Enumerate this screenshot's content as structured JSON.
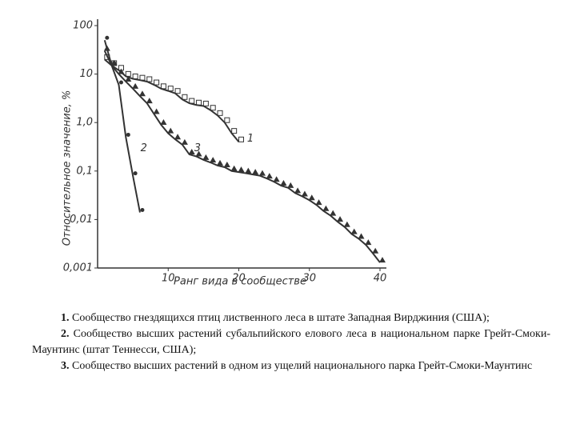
{
  "chart_data": {
    "type": "line",
    "log_y": true,
    "xlabel": "Ранг вида в сообществе",
    "ylabel": "Относительное значение, %",
    "xlim": [
      0,
      40
    ],
    "xticks": [
      10,
      20,
      30,
      40
    ],
    "ylim": [
      0.001,
      100
    ],
    "yticks": [
      100,
      10,
      {
        "value": 1,
        "label": "1,0"
      },
      {
        "value": 0.1,
        "label": "0,1"
      },
      {
        "value": 0.01,
        "label": "0,01"
      },
      {
        "value": 0.001,
        "label": "0,001"
      }
    ],
    "series": [
      {
        "name": "1",
        "color": "#333333",
        "marker": "square",
        "x": [
          1,
          2,
          3,
          4,
          5,
          6,
          7,
          8,
          9,
          10,
          11,
          12,
          13,
          14,
          15,
          16,
          17,
          18,
          19,
          20
        ],
        "values": [
          20,
          15,
          12,
          9,
          8,
          7.5,
          7,
          6,
          5,
          4.5,
          4,
          3,
          2.5,
          2.3,
          2.2,
          1.8,
          1.4,
          1,
          0.6,
          0.4
        ]
      },
      {
        "name": "2",
        "color": "#333333",
        "marker": "dot",
        "x": [
          1,
          2,
          3,
          4,
          5,
          6
        ],
        "values": [
          50,
          15,
          6,
          0.5,
          0.08,
          0.014
        ]
      },
      {
        "name": "3",
        "color": "#333333",
        "marker": "triangle",
        "x": [
          1,
          2,
          3,
          4,
          5,
          6,
          7,
          8,
          9,
          10,
          11,
          12,
          13,
          14,
          15,
          16,
          17,
          18,
          19,
          20,
          21,
          22,
          23,
          24,
          25,
          26,
          27,
          28,
          29,
          30,
          31,
          32,
          33,
          34,
          35,
          36,
          37,
          38,
          39,
          40
        ],
        "values": [
          30,
          15,
          10,
          7,
          5,
          3.5,
          2.5,
          1.5,
          0.9,
          0.6,
          0.45,
          0.35,
          0.22,
          0.2,
          0.17,
          0.15,
          0.13,
          0.12,
          0.1,
          0.095,
          0.09,
          0.085,
          0.08,
          0.07,
          0.06,
          0.05,
          0.045,
          0.035,
          0.03,
          0.025,
          0.02,
          0.015,
          0.012,
          0.009,
          0.007,
          0.005,
          0.004,
          0.003,
          0.002,
          0.0013
        ]
      }
    ]
  },
  "caption": [
    {
      "number": "1.",
      "text": "Сообщество гнездящихся птиц лиственного леса в штате Западная Вирджиния (США);"
    },
    {
      "number": "2.",
      "text": "Сообщество высших растений субальпийского елового леса в национальном парке Грейт-Смоки-Маунтинс (штат Теннесси, США);"
    },
    {
      "number": "3.",
      "text": "Сообщество высших растений в одном из ущелий национального парка Грейт-Смоки-Маунтинс"
    }
  ]
}
